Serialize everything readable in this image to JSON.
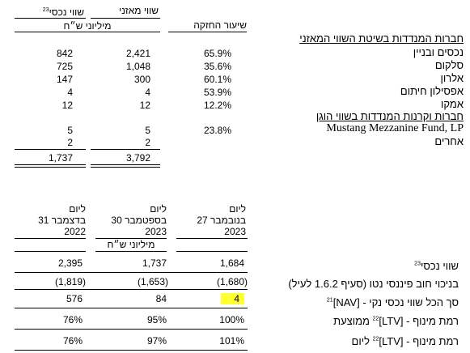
{
  "top_table": {
    "headers": {
      "col_nav": "שווי נכסי",
      "col_nav_sup": "23",
      "col_book": "שווי מאזני",
      "col_rate": "שיעור החזקה",
      "unit": "מיליוני ש״ח"
    },
    "section1_title": "חברות המנדדות בשיטת השווי המאזני",
    "section2_title": "חברות וקרנות המנדדות בשווי הוגן",
    "rows": [
      {
        "name": "נכסים ובניין",
        "nav": "842",
        "book": "2,421",
        "rate": "65.9%"
      },
      {
        "name": "סלקום",
        "nav": "725",
        "book": "1,048",
        "rate": "35.6%"
      },
      {
        "name": "אלרון",
        "nav": "147",
        "book": "300",
        "rate": "60.1%"
      },
      {
        "name": "אפסילון חיתום",
        "nav": "4",
        "book": "4",
        "rate": "53.9%"
      },
      {
        "name": "אמקו",
        "nav": "12",
        "book": "12",
        "rate": "12.2%"
      },
      {
        "name": "Mustang Mezzanine Fund, LP",
        "nav": "5",
        "book": "5",
        "rate": "23.8%"
      },
      {
        "name": "אחרים",
        "nav": "2",
        "book": "2",
        "rate": ""
      }
    ],
    "totals": {
      "nav": "1,737",
      "book": "3,792"
    }
  },
  "bottom_table": {
    "col_headers": [
      {
        "l1": "ליום",
        "l2": "27 בנובמבר",
        "l3": "2023"
      },
      {
        "l1": "ליום",
        "l2": "30 בספטמבר",
        "l3": "2023"
      },
      {
        "l1": "ליום",
        "l2": "31 בדצמבר",
        "l3": "2022"
      }
    ],
    "unit": "מיליוני ש״ח",
    "rows": [
      {
        "label": "שווי נכסי",
        "sup": "23",
        "suffix": "",
        "v1": "1,684",
        "v2": "1,737",
        "v3": "2,395"
      },
      {
        "label": "בניכוי חוב פיננסי נטו (סעיף 1.6.2 לעיל)",
        "sup": "",
        "suffix": "",
        "v1": "(1,680)",
        "v2": "(1,653)",
        "v3": "(1,819)"
      },
      {
        "label": "סך הכל שווי נכסי נקי - [NAV]",
        "sup": "21",
        "suffix": "",
        "v1": "4",
        "v2": "84",
        "v3": "576"
      },
      {
        "label": "רמת מינוף - [LTV]",
        "sup": "22",
        "suffix": "ממוצעת",
        "v1": "100%",
        "v2": "95%",
        "v3": "76%"
      },
      {
        "label": "רמת מינוף - [LTV]",
        "sup": "22",
        "suffix": "ליום",
        "v1": "101%",
        "v2": "97%",
        "v3": "76%"
      }
    ]
  }
}
